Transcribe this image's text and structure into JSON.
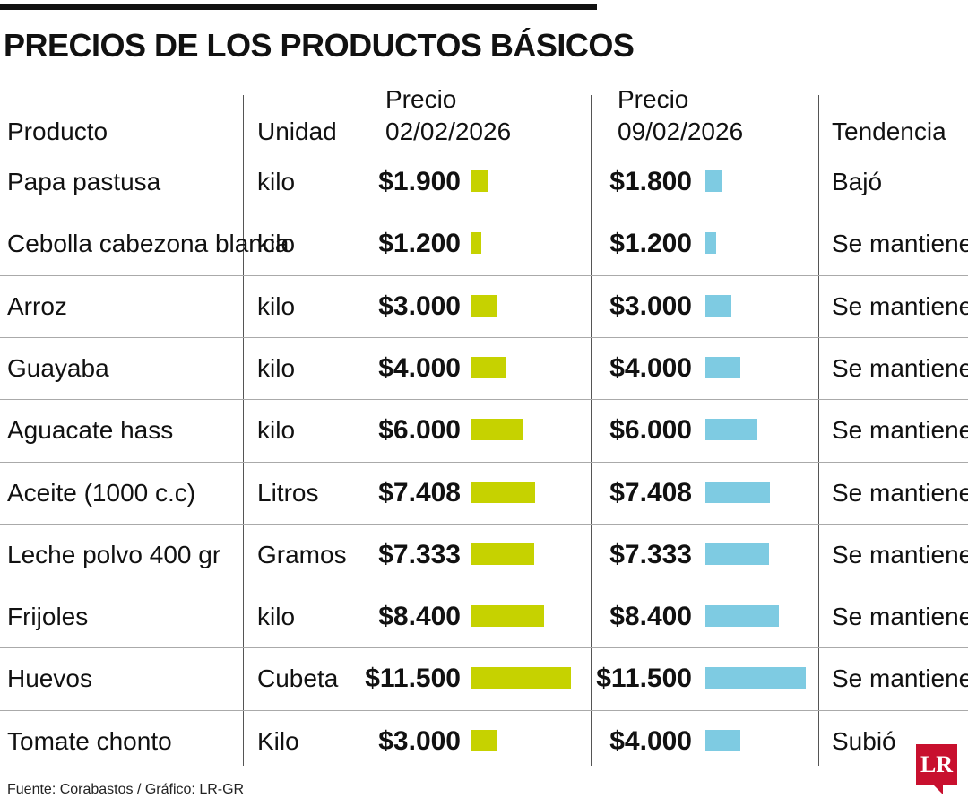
{
  "title": "PRECIOS DE LOS PRODUCTOS BÁSICOS",
  "headers": {
    "producto": "Producto",
    "unidad": "Unidad",
    "precio1_line1": "Precio",
    "precio1_line2": "02/02/2026",
    "precio2_line1": "Precio",
    "precio2_line2": "09/02/2026",
    "tendencia": "Tendencia"
  },
  "colors": {
    "series1": "#c6d200",
    "series2": "#7ecbe2"
  },
  "chart_data": {
    "type": "table",
    "title": "PRECIOS DE LOS PRODUCTOS BÁSICOS",
    "columns": [
      "Producto",
      "Unidad",
      "Precio 02/02/2026",
      "Precio 09/02/2026",
      "Tendencia"
    ],
    "series": [
      {
        "name": "Precio 02/02/2026",
        "values": [
          1900,
          1200,
          3000,
          4000,
          6000,
          7408,
          7333,
          8400,
          11500,
          3000
        ]
      },
      {
        "name": "Precio 09/02/2026",
        "values": [
          1800,
          1200,
          3000,
          4000,
          6000,
          7408,
          7333,
          8400,
          11500,
          4000
        ]
      }
    ],
    "rows": [
      {
        "producto": "Papa pastusa",
        "unidad": "kilo",
        "p1": 1900,
        "p1_label": "$1.900",
        "p2": 1800,
        "p2_label": "$1.800",
        "tendencia": "Bajó"
      },
      {
        "producto": "Cebolla cabezona blanca",
        "unidad": "kilo",
        "p1": 1200,
        "p1_label": "$1.200",
        "p2": 1200,
        "p2_label": "$1.200",
        "tendencia": "Se mantiene"
      },
      {
        "producto": "Arroz",
        "unidad": "kilo",
        "p1": 3000,
        "p1_label": "$3.000",
        "p2": 3000,
        "p2_label": "$3.000",
        "tendencia": "Se mantiene"
      },
      {
        "producto": "Guayaba",
        "unidad": "kilo",
        "p1": 4000,
        "p1_label": "$4.000",
        "p2": 4000,
        "p2_label": "$4.000",
        "tendencia": "Se mantiene"
      },
      {
        "producto": "Aguacate hass",
        "unidad": "kilo",
        "p1": 6000,
        "p1_label": "$6.000",
        "p2": 6000,
        "p2_label": "$6.000",
        "tendencia": "Se mantiene"
      },
      {
        "producto": "Aceite (1000 c.c)",
        "unidad": "Litros",
        "p1": 7408,
        "p1_label": "$7.408",
        "p2": 7408,
        "p2_label": "$7.408",
        "tendencia": "Se mantiene"
      },
      {
        "producto": "Leche polvo 400 gr",
        "unidad": "Gramos",
        "p1": 7333,
        "p1_label": "$7.333",
        "p2": 7333,
        "p2_label": "$7.333",
        "tendencia": "Se mantiene"
      },
      {
        "producto": "Frijoles",
        "unidad": "kilo",
        "p1": 8400,
        "p1_label": "$8.400",
        "p2": 8400,
        "p2_label": "$8.400",
        "tendencia": "Se mantiene"
      },
      {
        "producto": "Huevos",
        "unidad": "Cubeta",
        "p1": 11500,
        "p1_label": "$11.500",
        "p2": 11500,
        "p2_label": "$11.500",
        "tendencia": "Se mantiene"
      },
      {
        "producto": "Tomate chonto",
        "unidad": "Kilo",
        "p1": 3000,
        "p1_label": "$3.000",
        "p2": 4000,
        "p2_label": "$4.000",
        "tendencia": "Subió"
      }
    ]
  },
  "source": "Fuente: Corabastos / Gráfico: LR-GR",
  "logo": "LR"
}
